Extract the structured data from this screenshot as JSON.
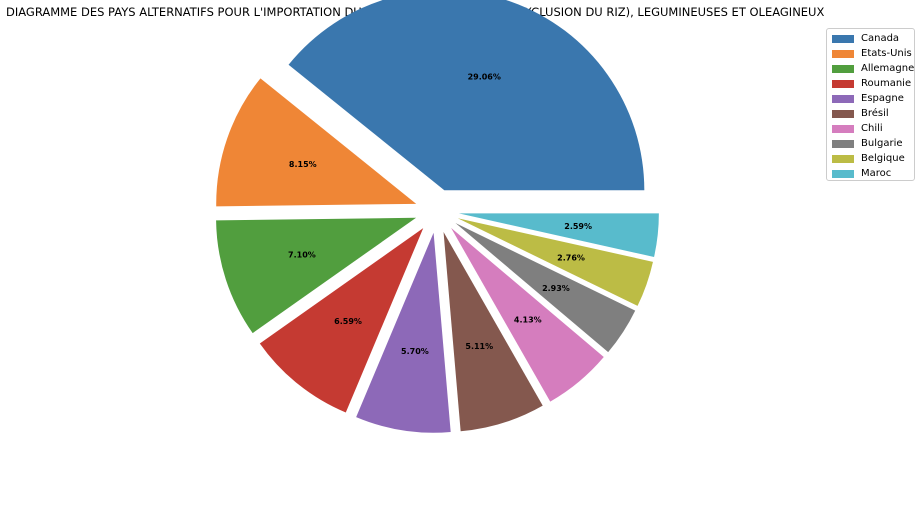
{
  "chart_data": {
    "type": "pie",
    "title": "DIAGRAMME DES PAYS ALTERNATIFS POUR L'IMPORTATION DU PRODUIT : CEREALES (A L'EXCLUSION DU RIZ), LEGUMINEUSES ET OLEAGINEUX",
    "legend_position": "top-right",
    "labels": [
      "Canada",
      "Etats-Unis",
      "Allemagne",
      "Roumanie",
      "Espagne",
      "Brésil",
      "Chili",
      "Bulgarie",
      "Belgique",
      "Maroc"
    ],
    "values": [
      29.06,
      8.15,
      7.1,
      6.59,
      5.7,
      5.11,
      4.13,
      2.93,
      2.76,
      2.59
    ],
    "value_labels": [
      "29.06%",
      "8.15%",
      "7.10%",
      "6.59%",
      "5.70%",
      "5.11%",
      "4.13%",
      "2.93%",
      "2.76%",
      "2.59%"
    ],
    "colors": [
      "#3a77ae",
      "#ef8636",
      "#519e3e",
      "#c53a32",
      "#8d69b8",
      "#84584e",
      "#d57dbe",
      "#7f7f7f",
      "#bcbc45",
      "#58bbcc"
    ],
    "exploded": true,
    "start_angle_deg": 0,
    "direction": "counterclockwise"
  }
}
